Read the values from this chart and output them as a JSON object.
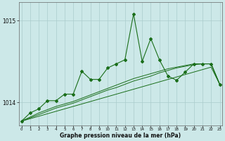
{
  "xlabel": "Graphe pression niveau de la mer (hPa)",
  "background_color": "#cce8e8",
  "grid_color": "#aacccc",
  "line_color": "#1a6e1a",
  "x_ticks": [
    0,
    1,
    2,
    3,
    4,
    5,
    6,
    7,
    8,
    9,
    10,
    11,
    12,
    13,
    14,
    15,
    16,
    17,
    18,
    19,
    20,
    21,
    22,
    23
  ],
  "y_ticks": [
    1014,
    1015
  ],
  "ylim": [
    1013.72,
    1015.22
  ],
  "xlim": [
    -0.3,
    23.3
  ],
  "main_data": [
    1013.77,
    1013.87,
    1013.92,
    1014.02,
    1014.02,
    1014.1,
    1014.1,
    1014.38,
    1014.28,
    1014.28,
    1014.42,
    1014.47,
    1014.52,
    1015.08,
    1014.5,
    1014.78,
    1014.52,
    1014.32,
    1014.27,
    1014.37,
    1014.47,
    1014.47,
    1014.47,
    1014.22
  ],
  "smooth_line1": [
    1013.77,
    1013.8,
    1013.83,
    1013.86,
    1013.89,
    1013.92,
    1013.95,
    1013.98,
    1014.01,
    1014.04,
    1014.07,
    1014.1,
    1014.13,
    1014.16,
    1014.19,
    1014.22,
    1014.25,
    1014.28,
    1014.31,
    1014.34,
    1014.37,
    1014.4,
    1014.43,
    1014.22
  ],
  "smooth_line2": [
    1013.77,
    1013.81,
    1013.85,
    1013.89,
    1013.93,
    1013.96,
    1013.99,
    1014.03,
    1014.07,
    1014.11,
    1014.15,
    1014.18,
    1014.22,
    1014.26,
    1014.29,
    1014.32,
    1014.36,
    1014.39,
    1014.42,
    1014.44,
    1014.46,
    1014.47,
    1014.47,
    1014.22
  ],
  "smooth_line3": [
    1013.77,
    1013.82,
    1013.87,
    1013.91,
    1013.95,
    1013.98,
    1014.01,
    1014.05,
    1014.09,
    1014.13,
    1014.17,
    1014.21,
    1014.25,
    1014.29,
    1014.32,
    1014.35,
    1014.38,
    1014.41,
    1014.43,
    1014.45,
    1014.47,
    1014.47,
    1014.47,
    1014.22
  ]
}
